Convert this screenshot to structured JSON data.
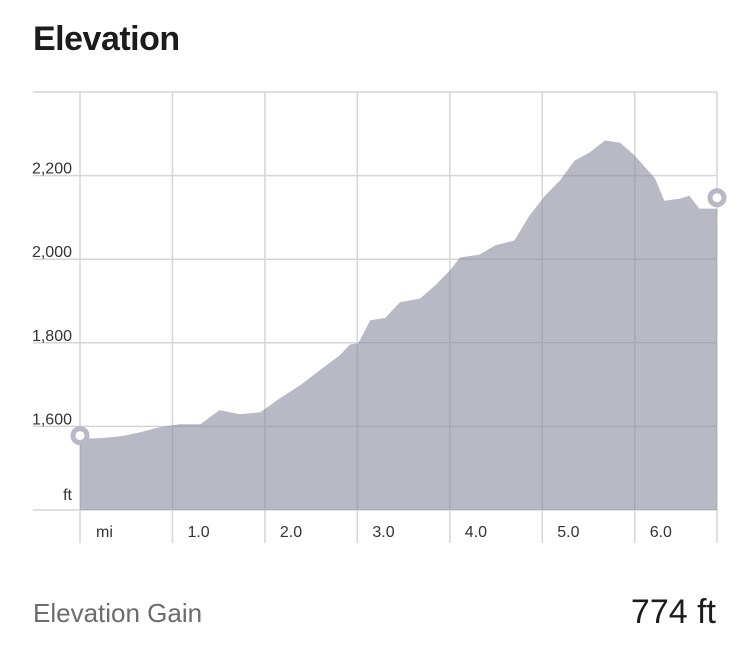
{
  "title": "Elevation",
  "chart_data": {
    "type": "area",
    "title": "Elevation",
    "xlabel": "mi",
    "ylabel": "ft",
    "xlim": [
      0,
      6.89
    ],
    "ylim": [
      1400,
      2400
    ],
    "grid": true,
    "x_ticks": [
      {
        "v": 1,
        "label": "1.0"
      },
      {
        "v": 2,
        "label": "2.0"
      },
      {
        "v": 3,
        "label": "3.0"
      },
      {
        "v": 4,
        "label": "4.0"
      },
      {
        "v": 5,
        "label": "5.0"
      },
      {
        "v": 6,
        "label": "6.0"
      }
    ],
    "y_ticks": [
      {
        "v": 1600,
        "label": "1,600"
      },
      {
        "v": 1800,
        "label": "1,800"
      },
      {
        "v": 2000,
        "label": "2,000"
      },
      {
        "v": 2200,
        "label": "2,200"
      }
    ],
    "x": [
      0,
      0.22,
      0.43,
      0.65,
      0.86,
      1.08,
      1.3,
      1.51,
      1.73,
      1.95,
      2.16,
      2.38,
      2.59,
      2.81,
      2.92,
      3.01,
      3.14,
      3.3,
      3.46,
      3.68,
      3.84,
      4.0,
      4.11,
      4.32,
      4.49,
      4.7,
      4.86,
      5.03,
      5.19,
      5.35,
      5.51,
      5.68,
      5.84,
      6.0,
      6.22,
      6.32,
      6.49,
      6.59,
      6.7,
      6.89
    ],
    "y": [
      1570,
      1572,
      1576,
      1586,
      1598,
      1605,
      1605,
      1639,
      1629,
      1634,
      1667,
      1698,
      1734,
      1770,
      1796,
      1799,
      1854,
      1859,
      1897,
      1906,
      1937,
      1973,
      2004,
      2011,
      2033,
      2045,
      2104,
      2152,
      2188,
      2236,
      2255,
      2284,
      2279,
      2248,
      2193,
      2140,
      2145,
      2152,
      2121,
      2121
    ],
    "start_marker": {
      "x": 0,
      "y": 1578
    },
    "end_marker": {
      "x": 6.89,
      "y": 2147
    },
    "fill_color": "#8a8aa0"
  },
  "summary": {
    "label": "Elevation Gain",
    "value": "774 ft"
  }
}
